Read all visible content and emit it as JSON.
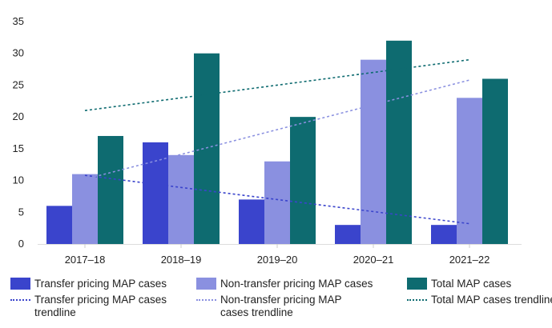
{
  "chart_data": {
    "type": "bar",
    "title": "",
    "xlabel": "",
    "ylabel": "",
    "ylim": [
      0,
      35
    ],
    "yticks": [
      0,
      5,
      10,
      15,
      20,
      25,
      30,
      35
    ],
    "grid": false,
    "legend_placement": "bottom",
    "categories": [
      "2017–18",
      "2018–19",
      "2019–20",
      "2020–21",
      "2021–22"
    ],
    "series": [
      {
        "name": "Transfer pricing MAP cases",
        "values": [
          6,
          16,
          7,
          3,
          3
        ],
        "color": "#3a44cc"
      },
      {
        "name": "Non-transfer pricing MAP cases",
        "values": [
          11,
          14,
          13,
          29,
          23
        ],
        "color": "#8a90e0"
      },
      {
        "name": "Total MAP cases",
        "values": [
          17,
          30,
          20,
          32,
          26
        ],
        "color": "#0e6b70"
      }
    ],
    "trendlines": [
      {
        "name": "Transfer pricing MAP cases trendline",
        "start": 10.8,
        "end": 3.2,
        "color": "#3a44cc"
      },
      {
        "name": "Non-transfer pricing MAP cases trendline",
        "start": 10.2,
        "end": 25.8,
        "color": "#8a90e0"
      },
      {
        "name": "Total MAP cases trendline",
        "start": 21,
        "end": 29,
        "color": "#0e6b70"
      }
    ]
  }
}
